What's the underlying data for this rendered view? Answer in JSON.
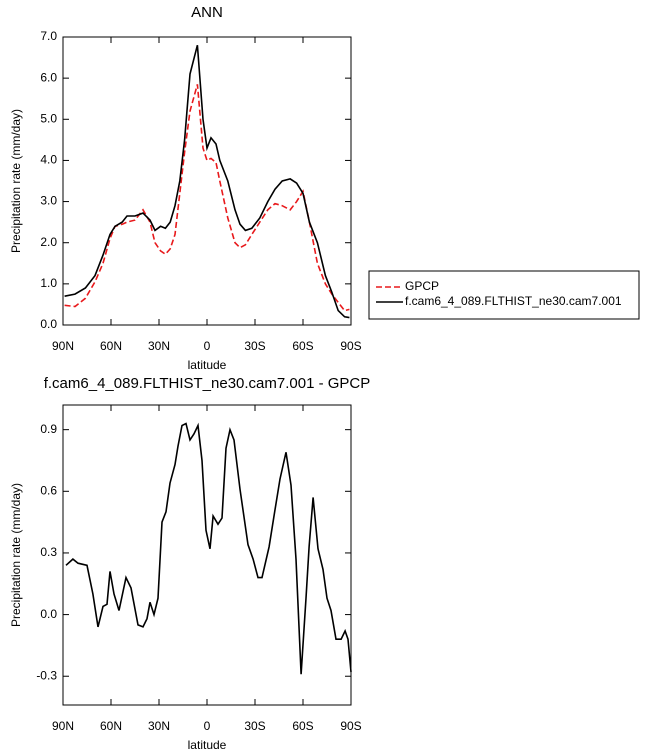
{
  "chart_data": [
    {
      "type": "line",
      "title": "ANN",
      "xlabel": "latitude",
      "ylabel": "Precipitation rate (mm/day)",
      "x": [
        89,
        82.5,
        76,
        70,
        65,
        60.6,
        57.5,
        53,
        50,
        45,
        40,
        35.6,
        32.5,
        29,
        26,
        23,
        20,
        17,
        14,
        10.6,
        6,
        2.5,
        0,
        -2.5,
        -5.6,
        -8,
        -13,
        -17.5,
        -20.6,
        -24,
        -28,
        -33,
        -38,
        -42.5,
        -47,
        -52,
        -56,
        -60,
        -64,
        -69,
        -74,
        -78,
        -82,
        -86,
        -89
      ],
      "series": [
        {
          "name": "GPCP",
          "color": "#e8191b",
          "dash": true,
          "values": [
            0.48,
            0.45,
            0.65,
            1.05,
            1.5,
            2.1,
            2.4,
            2.45,
            2.5,
            2.55,
            2.8,
            2.5,
            2.0,
            1.8,
            1.72,
            1.85,
            2.2,
            3.2,
            4.2,
            5.2,
            5.85,
            4.3,
            4.0,
            4.05,
            3.95,
            3.5,
            2.6,
            2.0,
            1.88,
            1.95,
            2.2,
            2.5,
            2.8,
            2.95,
            2.9,
            2.8,
            3.0,
            3.25,
            2.5,
            1.5,
            1.0,
            0.75,
            0.55,
            0.35,
            0.38
          ]
        },
        {
          "name": "f.cam6_4_089.FLTHIST_ne30.cam7.001",
          "color": "#000000",
          "dash": false,
          "values": [
            0.7,
            0.75,
            0.9,
            1.2,
            1.7,
            2.2,
            2.4,
            2.5,
            2.65,
            2.65,
            2.72,
            2.55,
            2.3,
            2.4,
            2.35,
            2.5,
            2.9,
            3.5,
            4.5,
            6.1,
            6.8,
            5.0,
            4.3,
            4.55,
            4.4,
            4.0,
            3.5,
            2.8,
            2.45,
            2.3,
            2.35,
            2.6,
            3.0,
            3.3,
            3.5,
            3.55,
            3.45,
            3.2,
            2.5,
            2.0,
            1.2,
            0.8,
            0.35,
            0.2,
            0.18
          ]
        }
      ],
      "xlim": [
        90,
        -90
      ],
      "xticks": [
        {
          "value": 90,
          "label": "90N"
        },
        {
          "value": 60,
          "label": "60N"
        },
        {
          "value": 30,
          "label": "30N"
        },
        0,
        {
          "value": -30,
          "label": "30S"
        },
        {
          "value": -60,
          "label": "60S"
        },
        {
          "value": -90,
          "label": "90S"
        }
      ],
      "ylim": [
        0,
        7
      ],
      "yticks": [
        {
          "value": 0,
          "label": "0.0"
        },
        {
          "value": 1,
          "label": "1.0"
        },
        {
          "value": 2,
          "label": "2.0"
        },
        {
          "value": 3,
          "label": "3.0"
        },
        {
          "value": 4,
          "label": "4.0"
        },
        {
          "value": 5,
          "label": "5.0"
        },
        {
          "value": 6,
          "label": "6.0"
        },
        {
          "value": 7,
          "label": "7.0"
        }
      ],
      "legend": "right"
    },
    {
      "type": "line",
      "title": "f.cam6_4_089.FLTHIST_ne30.cam7.001 - GPCP",
      "xlabel": "latitude",
      "ylabel": "Precipitation rate (mm/day)",
      "x": [
        88.1,
        83.8,
        80.6,
        75,
        71.3,
        68.1,
        65,
        62.5,
        60.6,
        58.1,
        55,
        50.6,
        47.5,
        43.1,
        40,
        37.5,
        35.6,
        33.1,
        30.6,
        28.1,
        25.6,
        23.1,
        20,
        18.1,
        15.6,
        13.1,
        10.6,
        8.1,
        5.6,
        3.1,
        0.6,
        -1.9,
        -3.8,
        -6.9,
        -9.4,
        -11.9,
        -14.4,
        -16.9,
        -20.6,
        -25.6,
        -28.8,
        -31.9,
        -34.4,
        -38.8,
        -42.5,
        -45.6,
        -49.4,
        -52.5,
        -55.6,
        -58.8,
        -61.9,
        -63.8,
        -66.3,
        -69.4,
        -72.5,
        -75,
        -77.5,
        -80.6,
        -83.8,
        -86.3,
        -88.1,
        -90
      ],
      "color": "#000000",
      "values": [
        0.24,
        0.27,
        0.25,
        0.24,
        0.1,
        -0.06,
        0.04,
        0.05,
        0.21,
        0.1,
        0.02,
        0.18,
        0.13,
        -0.05,
        -0.06,
        -0.02,
        0.06,
        0.0,
        0.08,
        0.45,
        0.5,
        0.64,
        0.73,
        0.82,
        0.92,
        0.93,
        0.85,
        0.88,
        0.92,
        0.75,
        0.41,
        0.32,
        0.48,
        0.44,
        0.47,
        0.81,
        0.9,
        0.85,
        0.61,
        0.34,
        0.27,
        0.18,
        0.18,
        0.33,
        0.51,
        0.66,
        0.79,
        0.63,
        0.27,
        -0.29,
        0.08,
        0.33,
        0.57,
        0.32,
        0.22,
        0.08,
        0.02,
        -0.12,
        -0.12,
        -0.08,
        -0.12,
        -0.28
      ],
      "xlim": [
        90,
        -90
      ],
      "xticks": [
        {
          "value": 90,
          "label": "90N"
        },
        {
          "value": 60,
          "label": "60N"
        },
        {
          "value": 30,
          "label": "30N"
        },
        0,
        {
          "value": -30,
          "label": "30S"
        },
        {
          "value": -60,
          "label": "60S"
        },
        {
          "value": -90,
          "label": "90S"
        }
      ],
      "ylim": [
        -0.44,
        1.02
      ],
      "yticks": [
        0.9,
        0.6,
        0.3,
        {
          "value": 0,
          "label": "0.0"
        },
        -0.3
      ]
    }
  ]
}
